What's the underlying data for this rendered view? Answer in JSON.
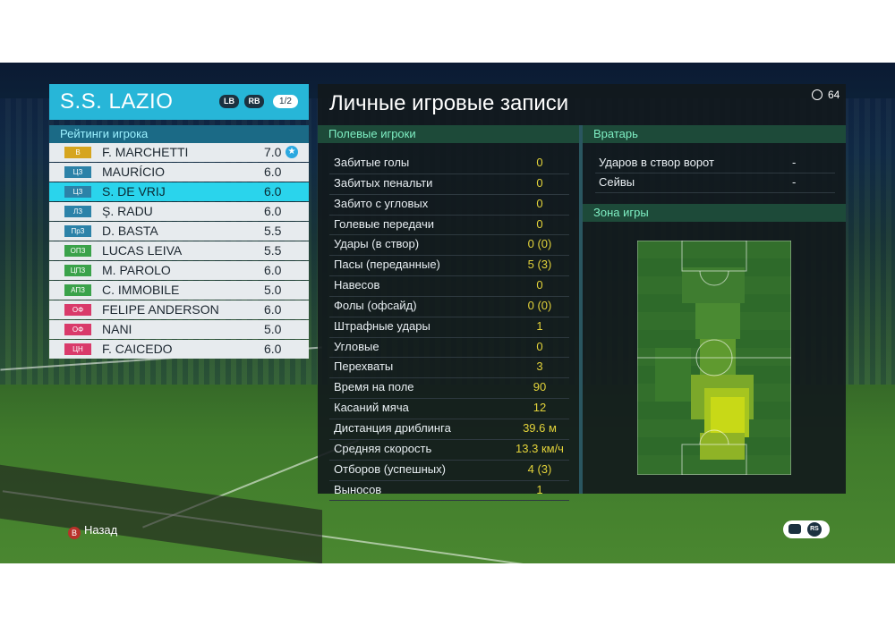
{
  "team": {
    "name": "S.S. LAZIO",
    "lb": "LB",
    "rb": "RB",
    "page": "1/2"
  },
  "ratings_header": "Рейтинги игрока",
  "players": [
    {
      "pos": "В",
      "pos_color": "#d6a51e",
      "name": "F. MARCHETTI",
      "rating": "7.0",
      "star": true
    },
    {
      "pos": "ЦЗ",
      "pos_color": "#2c82a8",
      "name": "MAURÍCIO",
      "rating": "6.0"
    },
    {
      "pos": "ЦЗ",
      "pos_color": "#2c82a8",
      "name": "S. DE VRIJ",
      "rating": "6.0",
      "selected": true
    },
    {
      "pos": "ЛЗ",
      "pos_color": "#2c82a8",
      "name": "Ș. RADU",
      "rating": "6.0"
    },
    {
      "pos": "ПрЗ",
      "pos_color": "#2c82a8",
      "name": "D. BASTA",
      "rating": "5.5"
    },
    {
      "pos": "ОПЗ",
      "pos_color": "#3aa24a",
      "name": "LUCAS LEIVA",
      "rating": "5.5"
    },
    {
      "pos": "ЦПЗ",
      "pos_color": "#3aa24a",
      "name": "M. PAROLO",
      "rating": "6.0"
    },
    {
      "pos": "АПЗ",
      "pos_color": "#3aa24a",
      "name": "C. IMMOBILE",
      "rating": "5.0"
    },
    {
      "pos": "ОФ",
      "pos_color": "#d93a6a",
      "name": "FELIPE ANDERSON",
      "rating": "6.0"
    },
    {
      "pos": "ОФ",
      "pos_color": "#d93a6a",
      "name": "NANI",
      "rating": "5.0"
    },
    {
      "pos": "ЦН",
      "pos_color": "#d93a6a",
      "name": "F. CAICEDO",
      "rating": "6.0"
    }
  ],
  "main_title": "Личные игровые записи",
  "timer": "64",
  "field_header": "Полевые игроки",
  "field_stats": [
    {
      "label": "Забитые голы",
      "value": "0"
    },
    {
      "label": "Забитых пенальти",
      "value": "0"
    },
    {
      "label": "Забито с угловых",
      "value": "0"
    },
    {
      "label": "Голевые передачи",
      "value": "0"
    },
    {
      "label": "Удары (в створ)",
      "value": "0 (0)"
    },
    {
      "label": "Пасы (переданные)",
      "value": "5 (3)"
    },
    {
      "label": "Навесов",
      "value": "0"
    },
    {
      "label": "Фолы (офсайд)",
      "value": "0 (0)"
    },
    {
      "label": "Штрафные удары",
      "value": "1"
    },
    {
      "label": "Угловые",
      "value": "0"
    },
    {
      "label": "Перехваты",
      "value": "3"
    },
    {
      "label": "Время на поле",
      "value": "90"
    },
    {
      "label": "Касаний мяча",
      "value": "12"
    },
    {
      "label": "Дистанция дриблинга",
      "value": "39.6 м"
    },
    {
      "label": "Средняя скорость",
      "value": "13.3 км/ч"
    },
    {
      "label": "Отборов (успешных)",
      "value": "4 (3)"
    },
    {
      "label": "Выносов",
      "value": "1"
    }
  ],
  "gk_header": "Вратарь",
  "gk_stats": [
    {
      "label": "Ударов в створ ворот",
      "value": "-"
    },
    {
      "label": "Сейвы",
      "value": "-"
    }
  ],
  "zone_header": "Зона игры",
  "back_label": "Назад",
  "back_button": "B",
  "rs_label": "RS",
  "colors": {
    "accent": "#27b6d8",
    "selected": "#2ad4ec",
    "value": "#e3d33a",
    "section": "#1d4a39"
  }
}
